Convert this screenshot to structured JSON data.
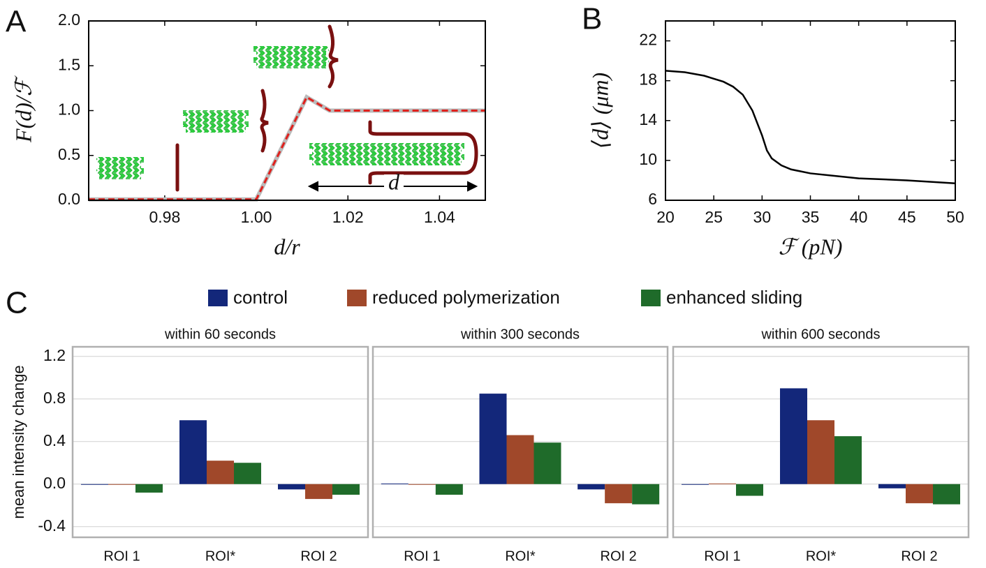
{
  "chart_data": [
    {
      "type": "line",
      "panel": "A",
      "xlabel": "d/r",
      "ylabel": "F(d)/ℱ",
      "annotation": "d",
      "x": [
        0.9634,
        1.0,
        1.011,
        1.016,
        1.05
      ],
      "y": [
        0.01,
        0.01,
        1.15,
        1.0,
        1.0
      ],
      "color": "#e0201c",
      "xlim": [
        0.9634,
        1.05
      ],
      "ylim": [
        0,
        2
      ],
      "xticks": [
        0.98,
        {
          "value": 1,
          "label": "1.00"
        },
        1.02,
        1.04
      ],
      "yticks": [
        {
          "value": 0,
          "label": "0.0"
        },
        0.5,
        {
          "value": 1,
          "label": "1.0"
        },
        1.5,
        {
          "value": 2,
          "label": "2.0"
        }
      ]
    },
    {
      "type": "line",
      "panel": "B",
      "xlabel": "ℱ (pN)",
      "ylabel": "⟨d⟩ (μm)",
      "x": [
        20,
        22,
        24,
        26,
        27,
        28,
        29,
        30,
        30.5,
        31,
        32,
        33,
        35,
        38,
        40,
        45,
        50
      ],
      "y": [
        19,
        18.85,
        18.5,
        17.9,
        17.4,
        16.6,
        15,
        12.5,
        11,
        10.2,
        9.5,
        9.1,
        8.7,
        8.4,
        8.2,
        8.0,
        7.7
      ],
      "color": "#000000",
      "xlim": [
        20,
        50
      ],
      "ylim": [
        6,
        24
      ],
      "xticks": [
        20,
        25,
        30,
        35,
        40,
        45,
        50
      ],
      "yticks": [
        6,
        10,
        14,
        18,
        22
      ]
    },
    {
      "type": "bar",
      "panel": "C",
      "ylabel": "mean intensity change",
      "categories": [
        "ROI 1",
        "ROI*",
        "ROI 2"
      ],
      "series": [
        {
          "name": "control",
          "color": "#13277a"
        },
        {
          "name": "reduced polymerization",
          "color": "#a0482a"
        },
        {
          "name": "enhanced sliding",
          "color": "#1f6b2a"
        }
      ],
      "ylim": [
        -0.5,
        1.29
      ],
      "yticks": [
        -0.4,
        {
          "value": 0,
          "label": "0.0"
        },
        0.4,
        0.8,
        1.2
      ],
      "grid": true,
      "facets": [
        {
          "title": "within 60 seconds",
          "values": [
            [
              -0.005,
              0.6,
              -0.05
            ],
            [
              -0.005,
              0.22,
              -0.14
            ],
            [
              -0.08,
              0.2,
              -0.1
            ]
          ]
        },
        {
          "title": "within 300 seconds",
          "values": [
            [
              0.005,
              0.85,
              -0.05
            ],
            [
              -0.005,
              0.46,
              -0.18
            ],
            [
              -0.1,
              0.39,
              -0.19
            ]
          ]
        },
        {
          "title": "within 600 seconds",
          "values": [
            [
              -0.005,
              0.9,
              -0.04
            ],
            [
              0.005,
              0.6,
              -0.18
            ],
            [
              -0.11,
              0.45,
              -0.19
            ]
          ]
        }
      ]
    }
  ]
}
